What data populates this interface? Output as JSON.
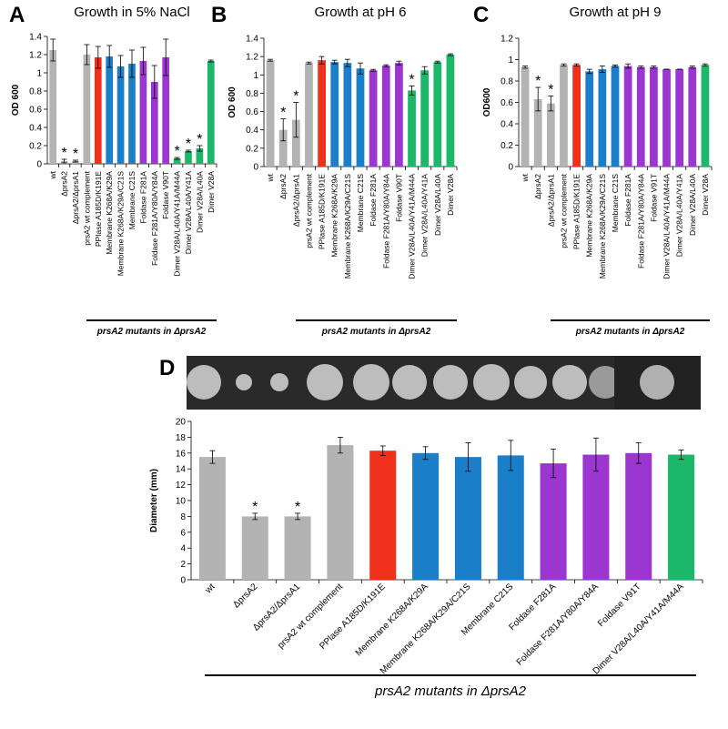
{
  "chart_data": [
    {
      "type": "bar",
      "label": "A",
      "title": "Growth in 5% NaCl",
      "y_label": "OD 600",
      "categories": [
        "wt",
        "ΔprsA2",
        "ΔprsA2/ΔprsA1",
        "prsA2 wt complement",
        "PPIase A185D/K191E",
        "Membrane K268A/K29A",
        "Membrane K268A/K29A/C21S",
        "Membrane C21S",
        "Foldase F281A",
        "Foldase F281A/Y80A/Y84A",
        "Foldase V90T",
        "Dimer V28A/L40A/Y41A/M44A",
        "Dimer V28A/L40A/Y41A",
        "Dimer V28A/L40A",
        "Dimer V28A"
      ],
      "values": [
        1.25,
        0.03,
        0.03,
        1.2,
        1.17,
        1.18,
        1.07,
        1.1,
        1.13,
        0.9,
        1.17,
        0.06,
        0.14,
        0.17,
        1.13
      ],
      "errors": [
        0.12,
        0.02,
        0.01,
        0.11,
        0.12,
        0.12,
        0.12,
        0.15,
        0.15,
        0.18,
        0.2,
        0.01,
        0.01,
        0.03,
        0.01
      ],
      "significance": [
        null,
        "*",
        "*",
        null,
        null,
        null,
        null,
        null,
        null,
        null,
        null,
        "*",
        "*",
        "*",
        null
      ],
      "colors": [
        "#b3b3b3",
        "#b3b3b3",
        "#b3b3b3",
        "#b3b3b3",
        "#f0301c",
        "#1a7ec8",
        "#1a7ec8",
        "#1a7ec8",
        "#9b36d0",
        "#9b36d0",
        "#9b36d0",
        "#1cb86a",
        "#1cb86a",
        "#1cb86a",
        "#1cb86a"
      ],
      "ylim": [
        0,
        1.4
      ],
      "yticks": [
        0,
        0.2,
        0.4,
        0.6,
        0.8,
        1,
        1.2,
        1.4
      ],
      "group_label": "prsA2 mutants in ΔprsA2"
    },
    {
      "type": "bar",
      "label": "B",
      "title": "Growth at pH 6",
      "y_label": "OD 600",
      "categories": [
        "wt",
        "ΔprsA2",
        "ΔprsA2/ΔprsA1",
        "prsA2 wt complement",
        "PPIase A185D/K191E",
        "Membrane K268A/K29A",
        "Membrane K268A/K29A/C21S",
        "Membrane C21S",
        "Foldase F281A",
        "Foldase F281A/Y80A/Y84A",
        "Foldase V90T",
        "Dimer V28A/L40A/Y41A/M44A",
        "Dimer V28A/L40A/Y41A",
        "Dimer V28A/L40A",
        "Dimer V28A"
      ],
      "values": [
        1.16,
        0.4,
        0.51,
        1.13,
        1.16,
        1.14,
        1.13,
        1.07,
        1.05,
        1.1,
        1.13,
        0.83,
        1.05,
        1.14,
        1.22
      ],
      "errors": [
        0.01,
        0.12,
        0.19,
        0.01,
        0.04,
        0.02,
        0.04,
        0.06,
        0.01,
        0.01,
        0.02,
        0.05,
        0.04,
        0.01,
        0.01
      ],
      "significance": [
        null,
        "*",
        "*",
        null,
        null,
        null,
        null,
        null,
        null,
        null,
        null,
        "*",
        null,
        null,
        null
      ],
      "colors": [
        "#b3b3b3",
        "#b3b3b3",
        "#b3b3b3",
        "#b3b3b3",
        "#f0301c",
        "#1a7ec8",
        "#1a7ec8",
        "#1a7ec8",
        "#9b36d0",
        "#9b36d0",
        "#9b36d0",
        "#1cb86a",
        "#1cb86a",
        "#1cb86a",
        "#1cb86a"
      ],
      "ylim": [
        0,
        1.4
      ],
      "yticks": [
        0,
        0.2,
        0.4,
        0.6,
        0.8,
        1,
        1.2,
        1.4
      ],
      "group_label": "prsA2 mutants in ΔprsA2"
    },
    {
      "type": "bar",
      "label": "C",
      "title": "Growth at pH 9",
      "y_label": "OD600",
      "categories": [
        "wt",
        "ΔprsA2",
        "ΔprsA2/ΔprsA1",
        "prsA2 wt complement",
        "PPIase A185D/K191E",
        "Membrane K268A/K29A",
        "Membrane K268A/K29A/C21S",
        "Membrane C21S",
        "Foldase F281A",
        "Foldase F281A/Y80A/Y84A",
        "Foldase V91T",
        "Dimer V28A/L40A/Y41A/M44A",
        "Dimer V28A/L40A/Y41A",
        "Dimer V28A/L40A",
        "Dimer V28A"
      ],
      "values": [
        0.93,
        0.63,
        0.59,
        0.95,
        0.95,
        0.89,
        0.91,
        0.94,
        0.94,
        0.93,
        0.93,
        0.91,
        0.91,
        0.93,
        0.95
      ],
      "errors": [
        0.01,
        0.11,
        0.07,
        0.01,
        0.01,
        0.02,
        0.03,
        0.01,
        0.02,
        0.01,
        0.01,
        0,
        0,
        0.01,
        0.01
      ],
      "significance": [
        null,
        "*",
        "*",
        null,
        null,
        null,
        null,
        null,
        null,
        null,
        null,
        null,
        null,
        null,
        null
      ],
      "colors": [
        "#b3b3b3",
        "#b3b3b3",
        "#b3b3b3",
        "#b3b3b3",
        "#f0301c",
        "#1a7ec8",
        "#1a7ec8",
        "#1a7ec8",
        "#9b36d0",
        "#9b36d0",
        "#9b36d0",
        "#9b36d0",
        "#9b36d0",
        "#9b36d0",
        "#1cb86a"
      ],
      "ylim": [
        0,
        1.2
      ],
      "yticks": [
        0,
        0.2,
        0.4,
        0.6,
        0.8,
        1,
        1.2
      ],
      "group_label": "prsA2 mutants in ΔprsA2"
    },
    {
      "type": "bar",
      "label": "D",
      "y_label": "Diameter (mm)",
      "categories": [
        "wt",
        "ΔprsA2",
        "ΔprsA2/ΔprsA1",
        "prsA2 wt complement",
        "PPlase A185D/K191E",
        "Membrane K268A/K29A",
        "Membrane K268A/K29A/C21S",
        "Membrane C21S",
        "Foldase F281A",
        "Foldase F281A/Y80A/Y84A",
        "Foldase V91T",
        "Dimer V28A/L40A/Y41A/M44A"
      ],
      "values": [
        15.5,
        8,
        8,
        17,
        16.3,
        16,
        15.5,
        15.7,
        14.7,
        15.8,
        16,
        15.8
      ],
      "errors": [
        0.8,
        0.4,
        0.4,
        1,
        0.6,
        0.8,
        1.8,
        1.9,
        1.8,
        2.1,
        1.3,
        0.6
      ],
      "significance": [
        null,
        "*",
        "*",
        null,
        null,
        null,
        null,
        null,
        null,
        null,
        null,
        null
      ],
      "colors": [
        "#b3b3b3",
        "#b3b3b3",
        "#b3b3b3",
        "#b3b3b3",
        "#f0301c",
        "#1a7ec8",
        "#1a7ec8",
        "#1a7ec8",
        "#9b36d0",
        "#9b36d0",
        "#9b36d0",
        "#1cb86a"
      ],
      "ylim": [
        0,
        20
      ],
      "yticks": [
        0,
        2,
        4,
        6,
        8,
        10,
        12,
        14,
        16,
        18,
        20
      ],
      "group_label": "prsA2 mutants in ΔprsA2"
    }
  ]
}
